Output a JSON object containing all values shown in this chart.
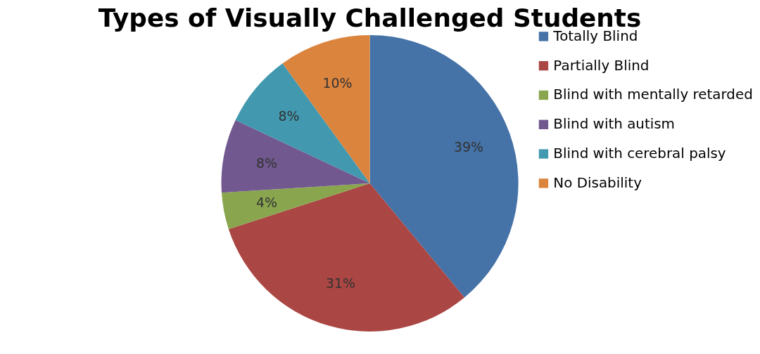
{
  "chart_data": {
    "type": "pie",
    "title": "Types of Visually Challenged Students",
    "categories": [
      "Totally Blind",
      "Partially Blind",
      "Blind with mentally retarded",
      "Blind with autism",
      "Blind with cerebral palsy",
      "No Disability"
    ],
    "values": [
      39,
      31,
      4,
      8,
      8,
      10
    ],
    "colors": [
      "#4572a7",
      "#aa4643",
      "#89a54e",
      "#71588f",
      "#4198af",
      "#db843d"
    ],
    "value_labels": [
      "39%",
      "31%",
      "4%",
      "8%",
      "8%",
      "10%"
    ],
    "legend": "right"
  }
}
